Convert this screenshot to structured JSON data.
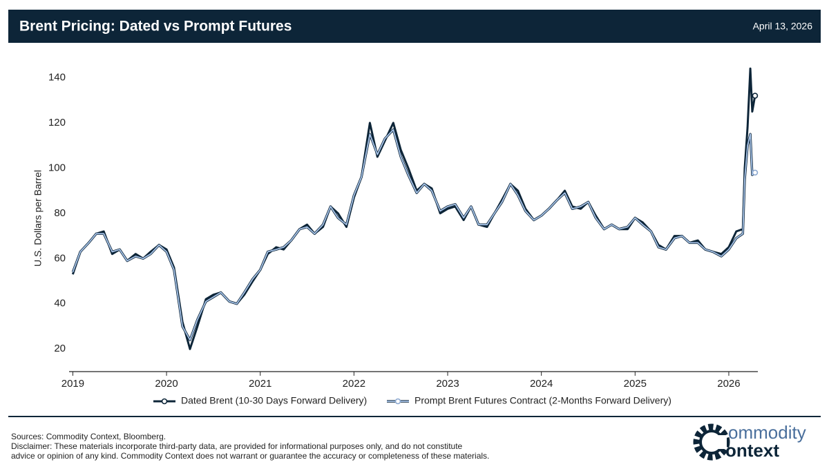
{
  "header": {
    "title": "Brent Pricing: Dated vs Prompt Futures",
    "date": "April 13, 2026"
  },
  "chart_data": {
    "type": "line",
    "ylabel": "U.S. Dollars per Barrel",
    "x": [
      2019.0,
      2019.08,
      2019.17,
      2019.25,
      2019.33,
      2019.42,
      2019.5,
      2019.58,
      2019.67,
      2019.75,
      2019.83,
      2019.92,
      2020.0,
      2020.08,
      2020.17,
      2020.25,
      2020.33,
      2020.42,
      2020.5,
      2020.58,
      2020.67,
      2020.75,
      2020.83,
      2020.92,
      2021.0,
      2021.08,
      2021.17,
      2021.25,
      2021.33,
      2021.42,
      2021.5,
      2021.58,
      2021.67,
      2021.75,
      2021.83,
      2021.92,
      2022.0,
      2022.08,
      2022.17,
      2022.25,
      2022.33,
      2022.42,
      2022.5,
      2022.58,
      2022.67,
      2022.75,
      2022.83,
      2022.92,
      2023.0,
      2023.08,
      2023.17,
      2023.25,
      2023.33,
      2023.42,
      2023.5,
      2023.58,
      2023.67,
      2023.75,
      2023.83,
      2023.92,
      2024.0,
      2024.08,
      2024.17,
      2024.25,
      2024.33,
      2024.42,
      2024.5,
      2024.58,
      2024.67,
      2024.75,
      2024.83,
      2024.92,
      2025.0,
      2025.08,
      2025.17,
      2025.25,
      2025.33,
      2025.42,
      2025.5,
      2025.58,
      2025.67,
      2025.75,
      2025.83,
      2025.92,
      2026.0,
      2026.08,
      2026.15,
      2026.17,
      2026.2,
      2026.23,
      2026.25,
      2026.28
    ],
    "series": [
      {
        "name": "Dated Brent (10-30 Days Forward Delivery)",
        "color": "#0d2538",
        "values": [
          53,
          63,
          67,
          71,
          72,
          62,
          64,
          59,
          62,
          60,
          63,
          66,
          64,
          56,
          32,
          20,
          30,
          42,
          44,
          45,
          41,
          40,
          44,
          50,
          55,
          62,
          65,
          64,
          68,
          73,
          75,
          71,
          74,
          83,
          80,
          74,
          87,
          96,
          120,
          105,
          112,
          120,
          108,
          100,
          90,
          93,
          91,
          80,
          82,
          83,
          77,
          83,
          75,
          74,
          80,
          86,
          93,
          90,
          82,
          77,
          79,
          82,
          86,
          90,
          83,
          82,
          85,
          79,
          73,
          75,
          73,
          73,
          78,
          76,
          72,
          66,
          64,
          70,
          70,
          67,
          68,
          64,
          63,
          62,
          65,
          72,
          73,
          100,
          118,
          144,
          125,
          132
        ]
      },
      {
        "name": "Prompt Brent Futures Contract (2-Months Forward Delivery)",
        "color": "#a7c3e8",
        "values": [
          54,
          63,
          67,
          71,
          71,
          63,
          64,
          59,
          61,
          60,
          62,
          66,
          63,
          55,
          30,
          24,
          33,
          41,
          43,
          45,
          41,
          40,
          45,
          51,
          55,
          63,
          64,
          65,
          68,
          73,
          74,
          71,
          75,
          83,
          78,
          75,
          88,
          96,
          115,
          106,
          113,
          117,
          105,
          97,
          89,
          93,
          90,
          81,
          83,
          84,
          78,
          83,
          75,
          75,
          80,
          85,
          93,
          88,
          81,
          77,
          79,
          82,
          86,
          89,
          82,
          83,
          85,
          78,
          73,
          75,
          73,
          74,
          78,
          75,
          72,
          65,
          64,
          69,
          70,
          67,
          67,
          64,
          63,
          61,
          64,
          69,
          71,
          95,
          110,
          115,
          97,
          98
        ]
      }
    ],
    "xlim": [
      2018.96,
      2026.31
    ],
    "xticks": [
      2019,
      2020,
      2021,
      2022,
      2023,
      2024,
      2025,
      2026
    ],
    "ylim": [
      10,
      145
    ],
    "yticks": [
      20,
      40,
      60,
      80,
      100,
      120,
      140
    ],
    "legend": "bottom"
  },
  "footer": {
    "sources": "Sources: Commodity Context, Bloomberg.",
    "disclaimer1": "Disclaimer: These materials incorporate third-party data, are provided for informational purposes only, and do not constitute",
    "disclaimer2": "advice or opinion of any kind. Commodity Context does not warrant or guarantee the accuracy or completeness of these materials.",
    "logo1": "ommodity",
    "logo2": "ontext"
  }
}
